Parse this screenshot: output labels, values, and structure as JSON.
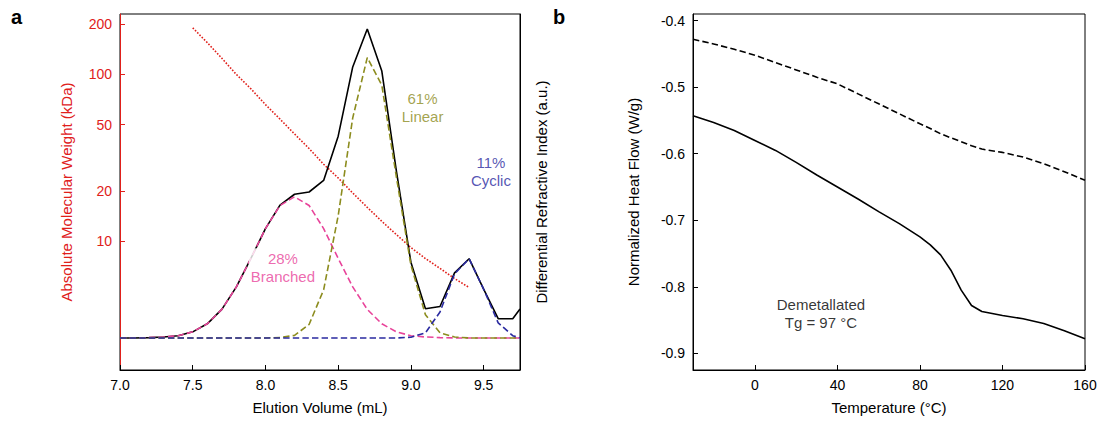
{
  "chart_data": [
    {
      "type": "line",
      "panel": "a",
      "x_label": "Elution Volume (mL)",
      "y_label": "Absolute Molecular Weight (kDa)",
      "y2_label": "Differential Refractive Index (a.u.)",
      "log": "y",
      "grid": false,
      "xlim": [
        7.0,
        9.75
      ],
      "xticks": [
        {
          "value": 7,
          "label": "7.0"
        },
        7.5,
        {
          "value": 8,
          "label": "8.0"
        },
        8.5,
        {
          "value": 9,
          "label": "9.0"
        },
        9.5
      ],
      "ylim": [
        1.7,
        230
      ],
      "yticks": [
        10,
        20,
        50,
        100,
        200
      ],
      "y2lim": [
        -0.1,
        1.01
      ],
      "x": [
        7.0,
        7.1,
        7.2,
        7.3,
        7.4,
        7.5,
        7.6,
        7.7,
        7.8,
        7.9,
        8.0,
        8.1,
        8.2,
        8.3,
        8.4,
        8.5,
        8.6,
        8.7,
        8.8,
        8.9,
        9.0,
        9.1,
        9.2,
        9.3,
        9.4,
        9.5,
        9.6,
        9.7,
        9.75
      ],
      "series": [
        {
          "color": "#e0201b",
          "line_style": "dotted",
          "values": [
            null,
            null,
            null,
            null,
            null,
            190,
            155,
            125,
            100,
            82,
            66,
            54,
            44,
            36,
            29,
            24,
            19.5,
            16,
            13.2,
            11,
            9.2,
            7.9,
            6.9,
            6.0,
            5.3,
            null,
            null,
            null,
            null
          ]
        },
        {
          "color": "#000000",
          "line_style": "solid",
          "axis": "y2",
          "values": [
            0,
            0,
            0.001,
            0.003,
            0.007,
            0.019,
            0.044,
            0.089,
            0.159,
            0.248,
            0.341,
            0.414,
            0.448,
            0.455,
            0.491,
            0.629,
            0.845,
            0.963,
            0.832,
            0.521,
            0.236,
            0.091,
            0.098,
            0.203,
            0.247,
            0.152,
            0.06,
            0.06,
            0.09
          ]
        },
        {
          "color": "#e8449a",
          "line_style": "dashed",
          "axis": "y2",
          "values": [
            0,
            0,
            0.001,
            0.003,
            0.007,
            0.019,
            0.044,
            0.089,
            0.159,
            0.248,
            0.341,
            0.413,
            0.44,
            0.413,
            0.341,
            0.248,
            0.159,
            0.089,
            0.044,
            0.019,
            0.007,
            0.003,
            0.001,
            0,
            0,
            0,
            0,
            0,
            0
          ]
        },
        {
          "color": "#8c8c1e",
          "line_style": "dashed",
          "axis": "y2",
          "values": [
            0,
            0,
            0,
            0,
            0,
            0,
            0,
            0,
            0,
            0,
            0,
            0.001,
            0.008,
            0.042,
            0.15,
            0.381,
            0.686,
            0.874,
            0.788,
            0.502,
            0.227,
            0.072,
            0.016,
            0.003,
            0,
            0,
            0,
            0,
            0
          ]
        },
        {
          "color": "#2a2aa0",
          "line_style": "dashed",
          "axis": "y2",
          "values": [
            0,
            0,
            0,
            0,
            0,
            0,
            0,
            0,
            0,
            0,
            0,
            0,
            0,
            0,
            0,
            0,
            0,
            0,
            0,
            0,
            0.002,
            0.016,
            0.081,
            0.2,
            0.247,
            0.152,
            0.047,
            0.007,
            0
          ]
        }
      ],
      "annotations": [
        {
          "lines": [
            "61%",
            "Linear"
          ],
          "x": 9.08,
          "y": 0.72,
          "axis": "y2",
          "color": "#8c8c1e"
        },
        {
          "lines": [
            "28%",
            "Branched"
          ],
          "x": 8.12,
          "y": 0.22,
          "axis": "y2",
          "color": "#e8449a"
        },
        {
          "lines": [
            "11%",
            "Cyclic"
          ],
          "x": 9.55,
          "y": 0.52,
          "axis": "y2",
          "color": "#2a2aa0"
        }
      ]
    },
    {
      "type": "line",
      "panel": "b",
      "x_label": "Temperature (°C)",
      "y_label": "Normalized Heat Flow (W/g)",
      "grid": false,
      "xlim": [
        -30,
        160
      ],
      "xticks": [
        0,
        40,
        80,
        120,
        160
      ],
      "ylim": [
        -0.925,
        -0.39
      ],
      "yticks": [
        -0.9,
        -0.8,
        -0.7,
        -0.6,
        -0.5,
        -0.4
      ],
      "x": [
        -30,
        -20,
        -10,
        0,
        10,
        20,
        30,
        40,
        50,
        60,
        70,
        80,
        85,
        90,
        95,
        100,
        105,
        110,
        120,
        130,
        140,
        150,
        160
      ],
      "series": [
        {
          "color": "#000000",
          "line_style": "dashed",
          "values": [
            -0.428,
            -0.435,
            -0.443,
            -0.452,
            -0.463,
            -0.474,
            -0.485,
            -0.495,
            -0.51,
            -0.525,
            -0.54,
            -0.555,
            -0.562,
            -0.57,
            -0.576,
            -0.582,
            -0.588,
            -0.593,
            -0.598,
            -0.605,
            -0.615,
            -0.627,
            -0.64
          ]
        },
        {
          "color": "#000000",
          "line_style": "solid",
          "values": [
            -0.543,
            -0.553,
            -0.565,
            -0.58,
            -0.595,
            -0.613,
            -0.632,
            -0.65,
            -0.668,
            -0.687,
            -0.705,
            -0.725,
            -0.737,
            -0.752,
            -0.775,
            -0.805,
            -0.828,
            -0.837,
            -0.843,
            -0.848,
            -0.855,
            -0.866,
            -0.878
          ]
        }
      ],
      "annotations": [
        {
          "lines": [
            "Demetallated",
            "Tg = 97 °C"
          ],
          "x": 32,
          "y": -0.84,
          "color": "#000000"
        }
      ]
    }
  ]
}
